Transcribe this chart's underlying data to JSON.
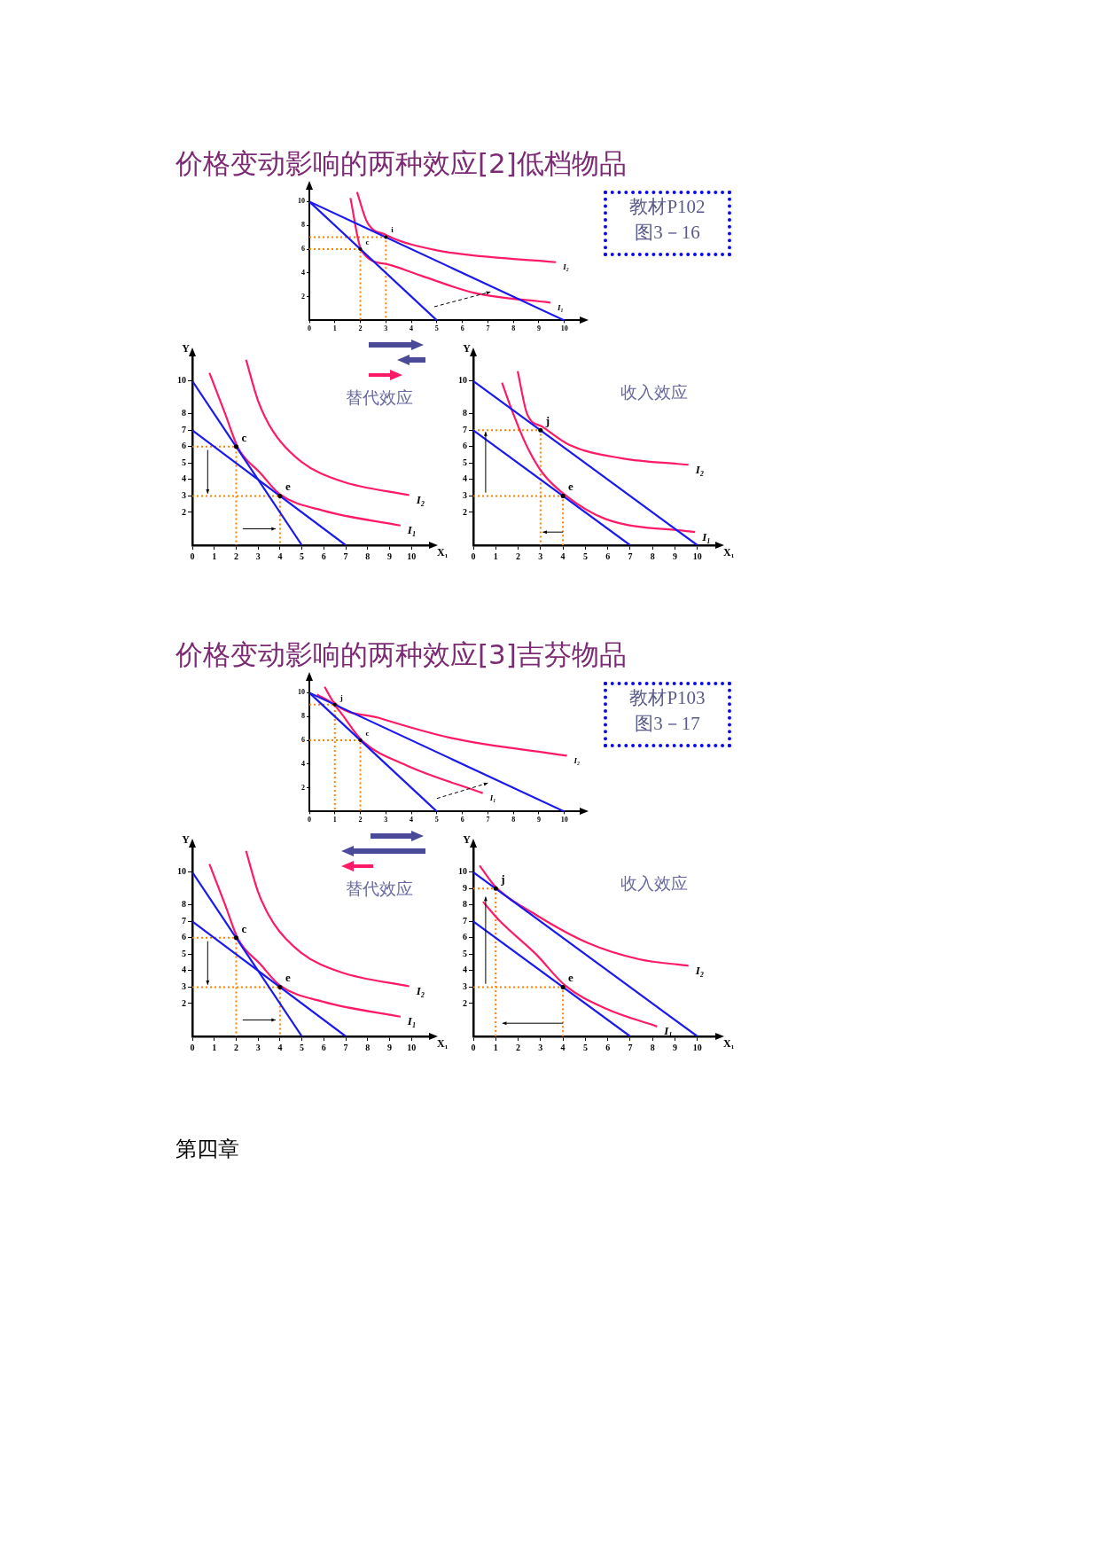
{
  "chart_data": [
    {
      "type": "line",
      "title": "价格变动影响的两种效应[2]低档物品",
      "xlim": [
        0,
        10.6
      ],
      "ylim": [
        0,
        11
      ],
      "xticks": [
        0,
        1,
        2,
        3,
        4,
        5,
        6,
        7,
        8,
        9,
        10
      ],
      "yticks": [
        2,
        4,
        6,
        8,
        10
      ],
      "series": [
        {
          "color": "#1a1aee",
          "x": [
            0,
            5
          ],
          "values": [
            10,
            0
          ]
        },
        {
          "color": "#1a1aee",
          "x": [
            0,
            10
          ],
          "values": [
            10,
            0
          ]
        },
        {
          "name": "I₁",
          "color": "#ff1a66",
          "x": [
            1.61,
            2.04,
            3.1,
            4.4,
            6.5,
            9.45
          ],
          "values": [
            10.3,
            5.9,
            4.7,
            3.75,
            2.3,
            1.5
          ]
        },
        {
          "name": "I₂",
          "color": "#ff1a66",
          "x": [
            1.87,
            2.26,
            3,
            5,
            9.67
          ],
          "values": [
            10.8,
            8.3,
            7.2,
            5.9,
            4.9
          ]
        },
        {
          "color": "#ff8000",
          "line_style": "dotted",
          "x": [
            0,
            3,
            3
          ],
          "values": [
            7,
            7,
            0
          ]
        },
        {
          "color": "#ff8000",
          "line_style": "dotted",
          "x": [
            0,
            2,
            2
          ],
          "values": [
            6,
            6,
            0
          ]
        }
      ],
      "annotations": [
        "教材P102\n图3－16",
        {
          "text": "i",
          "x": 3,
          "y": 7
        },
        {
          "text": "c",
          "x": 2,
          "y": 6
        }
      ]
    },
    {
      "type": "line",
      "xlabel": "X₁",
      "ylabel": "Y",
      "xlim": [
        0,
        10.8
      ],
      "ylim": [
        0,
        11.5
      ],
      "xticks": [
        0,
        1,
        2,
        3,
        4,
        5,
        6,
        7,
        8,
        9,
        10
      ],
      "yticks": [
        2,
        3,
        4,
        5,
        6,
        7,
        8,
        10
      ],
      "series": [
        {
          "color": "#1a1aee",
          "x": [
            0,
            5
          ],
          "values": [
            10,
            0
          ]
        },
        {
          "color": "#1a1aee",
          "x": [
            0,
            7
          ],
          "values": [
            7,
            0
          ]
        },
        {
          "name": "I₁",
          "color": "#ff1a66",
          "x": [
            0.78,
            1.5,
            2.1,
            3.1,
            4,
            6,
            9.5
          ],
          "values": [
            10.5,
            8,
            5.9,
            4.4,
            3.1,
            2.1,
            1.2
          ]
        },
        {
          "name": "I₂",
          "color": "#ff1a66",
          "x": [
            2.45,
            3,
            3.7,
            4.96,
            6.8,
            9.9
          ],
          "values": [
            11.3,
            8.8,
            6.9,
            5.1,
            3.9,
            3.05
          ]
        },
        {
          "color": "#ff8000",
          "line_style": "dotted",
          "x": [
            0,
            2,
            2
          ],
          "values": [
            6,
            6,
            0
          ]
        },
        {
          "color": "#ff8000",
          "line_style": "dotted",
          "x": [
            0,
            4,
            4
          ],
          "values": [
            3,
            3,
            0
          ]
        }
      ],
      "annotations": [
        "替代效应",
        {
          "text": "c",
          "x": 2,
          "y": 6
        },
        {
          "text": "e",
          "x": 4,
          "y": 3
        }
      ]
    },
    {
      "type": "line",
      "xlabel": "X₁",
      "ylabel": "Y",
      "xlim": [
        0,
        10.8
      ],
      "ylim": [
        0,
        11.5
      ],
      "xticks": [
        0,
        1,
        2,
        3,
        4,
        5,
        6,
        7,
        8,
        9,
        10
      ],
      "yticks": [
        2,
        3,
        4,
        5,
        6,
        7,
        8,
        10
      ],
      "series": [
        {
          "color": "#1a1aee",
          "x": [
            0,
            10
          ],
          "values": [
            10,
            0
          ]
        },
        {
          "color": "#1a1aee",
          "x": [
            0,
            7
          ],
          "values": [
            7,
            0
          ]
        },
        {
          "name": "I₁",
          "color": "#ff1a66",
          "x": [
            1.28,
            1.7,
            2.4,
            3.09,
            4.06,
            5.9,
            9.9
          ],
          "values": [
            9.9,
            8.3,
            6,
            4.4,
            3.1,
            1.6,
            0.8
          ]
        },
        {
          "name": "I₂",
          "color": "#ff1a66",
          "x": [
            1.98,
            2.4,
            3.1,
            4.3,
            6.6,
            9.6
          ],
          "values": [
            10.6,
            8,
            7.2,
            6.1,
            5.3,
            4.9
          ]
        },
        {
          "color": "#ff8000",
          "line_style": "dotted",
          "x": [
            0,
            3,
            3
          ],
          "values": [
            7,
            7,
            0
          ]
        },
        {
          "color": "#ff8000",
          "line_style": "dotted",
          "x": [
            0,
            4,
            4
          ],
          "values": [
            3,
            3,
            0
          ]
        }
      ],
      "annotations": [
        "收入效应",
        {
          "text": "j",
          "x": 3,
          "y": 7
        },
        {
          "text": "e",
          "x": 4,
          "y": 3
        }
      ]
    },
    {
      "type": "line",
      "title": "价格变动影响的两种效应[3]吉芬物品",
      "xlim": [
        0,
        10.6
      ],
      "ylim": [
        0,
        11
      ],
      "xticks": [
        0,
        1,
        2,
        3,
        4,
        5,
        6,
        7,
        8,
        9,
        10
      ],
      "yticks": [
        2,
        4,
        6,
        8,
        10
      ],
      "series": [
        {
          "color": "#1a1aee",
          "x": [
            0,
            5
          ],
          "values": [
            10,
            0
          ]
        },
        {
          "color": "#1a1aee",
          "x": [
            0,
            10
          ],
          "values": [
            10,
            0
          ]
        },
        {
          "name": "I₁",
          "color": "#ff1a66",
          "x": [
            0.3,
            0.96,
            2.1,
            3.8,
            6.8
          ],
          "values": [
            9.85,
            9,
            5.9,
            3.9,
            1.55
          ]
        },
        {
          "name": "I₂",
          "color": "#ff1a66",
          "x": [
            0.6,
            0.96,
            2.7,
            5.55,
            10.1
          ],
          "values": [
            10.5,
            9.2,
            7.9,
            6.2,
            4.7
          ]
        },
        {
          "color": "#ff8000",
          "line_style": "dotted",
          "x": [
            0,
            1,
            1
          ],
          "values": [
            9,
            9,
            0
          ]
        },
        {
          "color": "#ff8000",
          "line_style": "dotted",
          "x": [
            0,
            2,
            2
          ],
          "values": [
            6,
            6,
            0
          ]
        }
      ],
      "annotations": [
        "教材P103\n图3－17",
        {
          "text": "j",
          "x": 1,
          "y": 9
        },
        {
          "text": "c",
          "x": 2,
          "y": 6
        }
      ]
    },
    {
      "type": "line",
      "xlabel": "X₁",
      "ylabel": "Y",
      "xlim": [
        0,
        10.8
      ],
      "ylim": [
        0,
        11.5
      ],
      "xticks": [
        0,
        1,
        2,
        3,
        4,
        5,
        6,
        7,
        8,
        9,
        10
      ],
      "yticks": [
        2,
        3,
        4,
        5,
        6,
        7,
        8,
        10
      ],
      "series": [
        {
          "color": "#1a1aee",
          "x": [
            0,
            5
          ],
          "values": [
            10,
            0
          ]
        },
        {
          "color": "#1a1aee",
          "x": [
            0,
            7
          ],
          "values": [
            7,
            0
          ]
        },
        {
          "name": "I₁",
          "color": "#ff1a66",
          "x": [
            0.78,
            1.5,
            2.1,
            3.1,
            4,
            6,
            9.5
          ],
          "values": [
            10.5,
            8,
            5.9,
            4.4,
            3.1,
            2.1,
            1.2
          ]
        },
        {
          "name": "I₂",
          "color": "#ff1a66",
          "x": [
            2.45,
            3,
            3.7,
            4.96,
            6.8,
            9.9
          ],
          "values": [
            11.3,
            8.8,
            6.9,
            5.1,
            3.9,
            3.05
          ]
        },
        {
          "color": "#ff8000",
          "line_style": "dotted",
          "x": [
            0,
            2,
            2
          ],
          "values": [
            6,
            6,
            0
          ]
        },
        {
          "color": "#ff8000",
          "line_style": "dotted",
          "x": [
            0,
            4,
            4
          ],
          "values": [
            3,
            3,
            0
          ]
        }
      ],
      "annotations": [
        "替代效应",
        {
          "text": "c",
          "x": 2,
          "y": 6
        },
        {
          "text": "e",
          "x": 4,
          "y": 3
        }
      ]
    },
    {
      "type": "line",
      "xlabel": "X₁",
      "ylabel": "Y",
      "xlim": [
        0,
        10.8
      ],
      "ylim": [
        0,
        11.5
      ],
      "xticks": [
        0,
        1,
        2,
        3,
        4,
        5,
        6,
        7,
        8,
        9,
        10
      ],
      "yticks": [
        2,
        3,
        4,
        5,
        6,
        7,
        8,
        9,
        10
      ],
      "series": [
        {
          "color": "#1a1aee",
          "x": [
            0,
            10
          ],
          "values": [
            10,
            0
          ]
        },
        {
          "color": "#1a1aee",
          "x": [
            0,
            7
          ],
          "values": [
            7,
            0
          ]
        },
        {
          "name": "I₁",
          "color": "#ff1a66",
          "x": [
            0.43,
            1.2,
            2.8,
            4.1,
            5.9,
            8.2
          ],
          "values": [
            8.2,
            7,
            5,
            3.1,
            1.7,
            0.6
          ]
        },
        {
          "name": "I₂",
          "color": "#ff1a66",
          "x": [
            0.28,
            1,
            2.8,
            5.1,
            7.4,
            9.6
          ],
          "values": [
            10.4,
            9.1,
            7.4,
            5.7,
            4.7,
            4.3
          ]
        },
        {
          "color": "#ff8000",
          "line_style": "dotted",
          "x": [
            0,
            1,
            1
          ],
          "values": [
            9,
            9,
            0
          ]
        },
        {
          "color": "#ff8000",
          "line_style": "dotted",
          "x": [
            0,
            4,
            4
          ],
          "values": [
            3,
            3,
            0
          ]
        }
      ],
      "annotations": [
        "收入效应",
        {
          "text": "j",
          "x": 1,
          "y": 9
        },
        {
          "text": "e",
          "x": 4,
          "y": 3
        },
        "第四章"
      ]
    }
  ]
}
